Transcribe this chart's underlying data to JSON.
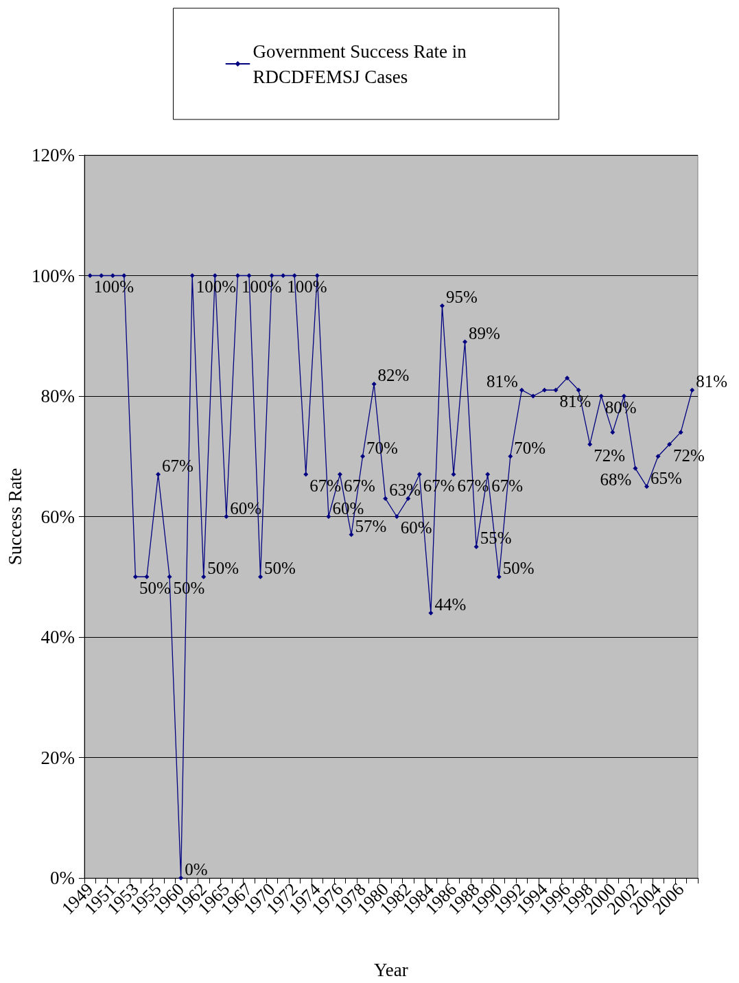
{
  "chart_data": {
    "type": "line",
    "xlabel": "Year",
    "ylabel": "Success Rate",
    "categories": [
      "1949",
      null,
      "1951",
      null,
      "1953",
      null,
      "1955",
      null,
      "1960",
      null,
      "1962",
      null,
      "1965",
      null,
      "1967",
      null,
      "1970",
      null,
      "1972",
      null,
      "1974",
      null,
      "1976",
      null,
      "1978",
      null,
      "1980",
      null,
      "1982",
      null,
      "1984",
      null,
      "1986",
      null,
      "1988",
      null,
      "1990",
      null,
      "1992",
      null,
      "1994",
      null,
      "1996",
      null,
      "1998",
      null,
      "2000",
      null,
      "2002",
      null,
      "2004",
      null,
      "2006",
      null
    ],
    "series": [
      {
        "name": "Government Success Rate in RDCDFEMSJ Cases",
        "color": "#000080",
        "values": [
          100,
          100,
          100,
          100,
          50,
          50,
          67,
          50,
          0,
          100,
          50,
          100,
          60,
          100,
          100,
          50,
          100,
          100,
          100,
          67,
          100,
          60,
          67,
          57,
          70,
          82,
          63,
          60,
          63,
          67,
          44,
          95,
          67,
          89,
          55,
          67,
          50,
          70,
          81,
          80,
          81,
          81,
          83,
          81,
          72,
          80,
          74,
          80,
          68,
          65,
          70,
          72,
          74,
          81
        ]
      }
    ],
    "value_labels": [
      [
        "100%",
        null,
        null,
        null,
        "50%",
        null,
        "67%",
        "50%",
        "0%",
        "100%",
        "50%",
        null,
        "60%",
        "100%",
        null,
        "50%",
        null,
        "100%",
        null,
        "67%",
        null,
        "60%",
        "67%",
        "57%",
        "70%",
        "82%",
        "63%",
        "60%",
        null,
        "67%",
        "44%",
        "95%",
        "67%",
        "89%",
        "55%",
        "67%",
        "50%",
        "70%",
        "81%",
        null,
        null,
        "81%",
        null,
        null,
        "72%",
        "80%",
        null,
        null,
        "68%",
        "65%",
        null,
        "72%",
        null,
        "81%"
      ]
    ],
    "ylim": [
      0,
      120
    ],
    "yticks": [
      {
        "value": 0,
        "label": "0%"
      },
      {
        "value": 20,
        "label": "20%"
      },
      {
        "value": 40,
        "label": "40%"
      },
      {
        "value": 60,
        "label": "60%"
      },
      {
        "value": 80,
        "label": "80%"
      },
      {
        "value": 100,
        "label": "100%"
      },
      {
        "value": 120,
        "label": "120%"
      }
    ],
    "grid": "y",
    "legend": "top",
    "marker": "diamond",
    "line_style": "solid"
  }
}
